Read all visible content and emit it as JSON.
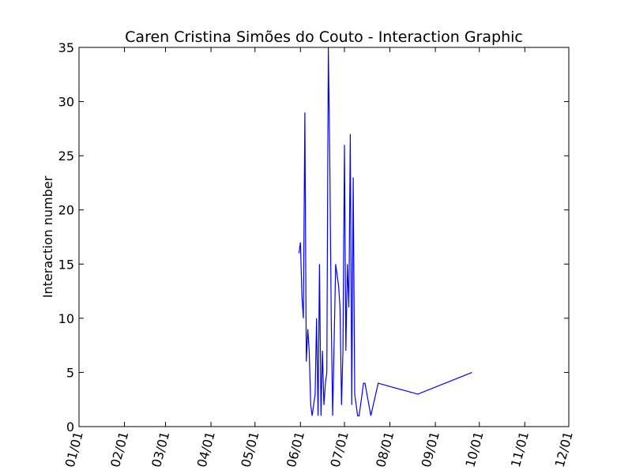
{
  "chart_data": {
    "type": "line",
    "title": "Caren Cristina Simões do Couto - Interaction Graphic",
    "xlabel": "",
    "ylabel": "Interaction number",
    "xlim": [
      "01/01",
      "12/01"
    ],
    "ylim": [
      0,
      35
    ],
    "x_ticks": [
      "01/01",
      "02/01",
      "03/01",
      "04/01",
      "05/01",
      "06/01",
      "07/01",
      "08/01",
      "09/01",
      "10/01",
      "11/01",
      "12/01"
    ],
    "y_ticks": [
      0,
      5,
      10,
      15,
      20,
      25,
      30,
      35
    ],
    "grid": false,
    "series": [
      {
        "name": "",
        "color": "#0000ff",
        "x": [
          "05/31",
          "06/01",
          "06/02",
          "06/03",
          "06/04",
          "06/05",
          "06/06",
          "06/07",
          "06/08",
          "06/09",
          "06/10",
          "06/11",
          "06/12",
          "06/13",
          "06/14",
          "06/15",
          "06/16",
          "06/17",
          "06/18",
          "06/19",
          "06/20",
          "06/21",
          "06/22",
          "06/23",
          "06/24",
          "06/25",
          "06/26",
          "06/27",
          "06/28",
          "06/29",
          "06/30",
          "07/01",
          "07/02",
          "07/03",
          "07/04",
          "07/05",
          "07/06",
          "07/07",
          "07/08",
          "07/09",
          "07/10",
          "07/11",
          "07/12",
          "07/13",
          "07/14",
          "07/15",
          "07/19",
          "07/24",
          "08/20",
          "09/26"
        ],
        "y": [
          16,
          17,
          12,
          10,
          29,
          6,
          9,
          7,
          2,
          1,
          2,
          3,
          10,
          1,
          15,
          1,
          7,
          2,
          4,
          5,
          35,
          25,
          10,
          1,
          8,
          15,
          14,
          13,
          11,
          2,
          7,
          26,
          7,
          15,
          11,
          27,
          2,
          23,
          3,
          2,
          1,
          1,
          2,
          3,
          4,
          4,
          1,
          4,
          3,
          5
        ]
      }
    ]
  }
}
